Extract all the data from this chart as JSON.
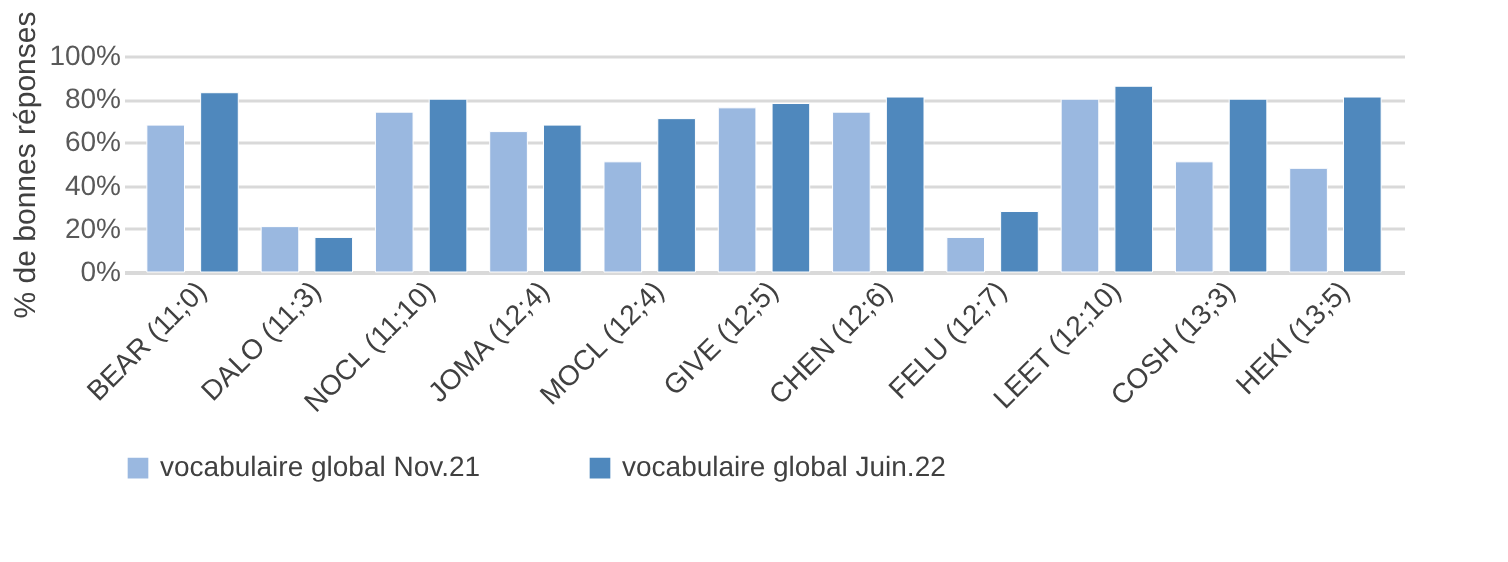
{
  "chart_data": {
    "type": "bar",
    "ylabel": "% de bonnes réponses",
    "categories": [
      "BEAR (11;0)",
      "DALO (11;3)",
      "NOCL (11;10)",
      "JOMA (12;4)",
      "MOCL (12;4)",
      "GIVE (12;5)",
      "CHEN (12;6)",
      "FELU (12;7)",
      "LEET (12;10)",
      "COSH (13;3)",
      "HEKI (13;5)"
    ],
    "series": [
      {
        "name": "vocabulaire global Nov.21",
        "color": "#9ab8e0",
        "values": [
          68,
          21,
          74,
          65,
          51,
          76,
          74,
          16,
          80,
          51,
          48
        ]
      },
      {
        "name": "vocabulaire global Juin.22",
        "color": "#4f88bd",
        "values": [
          83,
          16,
          80,
          68,
          71,
          78,
          81,
          28,
          86,
          80,
          81
        ]
      }
    ],
    "ylim": [
      0,
      100
    ],
    "yticks": [
      {
        "value": 0,
        "label": "0%"
      },
      {
        "value": 20,
        "label": "20%"
      },
      {
        "value": 40,
        "label": "40%"
      },
      {
        "value": 60,
        "label": "60%"
      },
      {
        "value": 80,
        "label": "80%"
      },
      {
        "value": 100,
        "label": "100%"
      }
    ],
    "grid": "y",
    "legend": "bottom"
  }
}
